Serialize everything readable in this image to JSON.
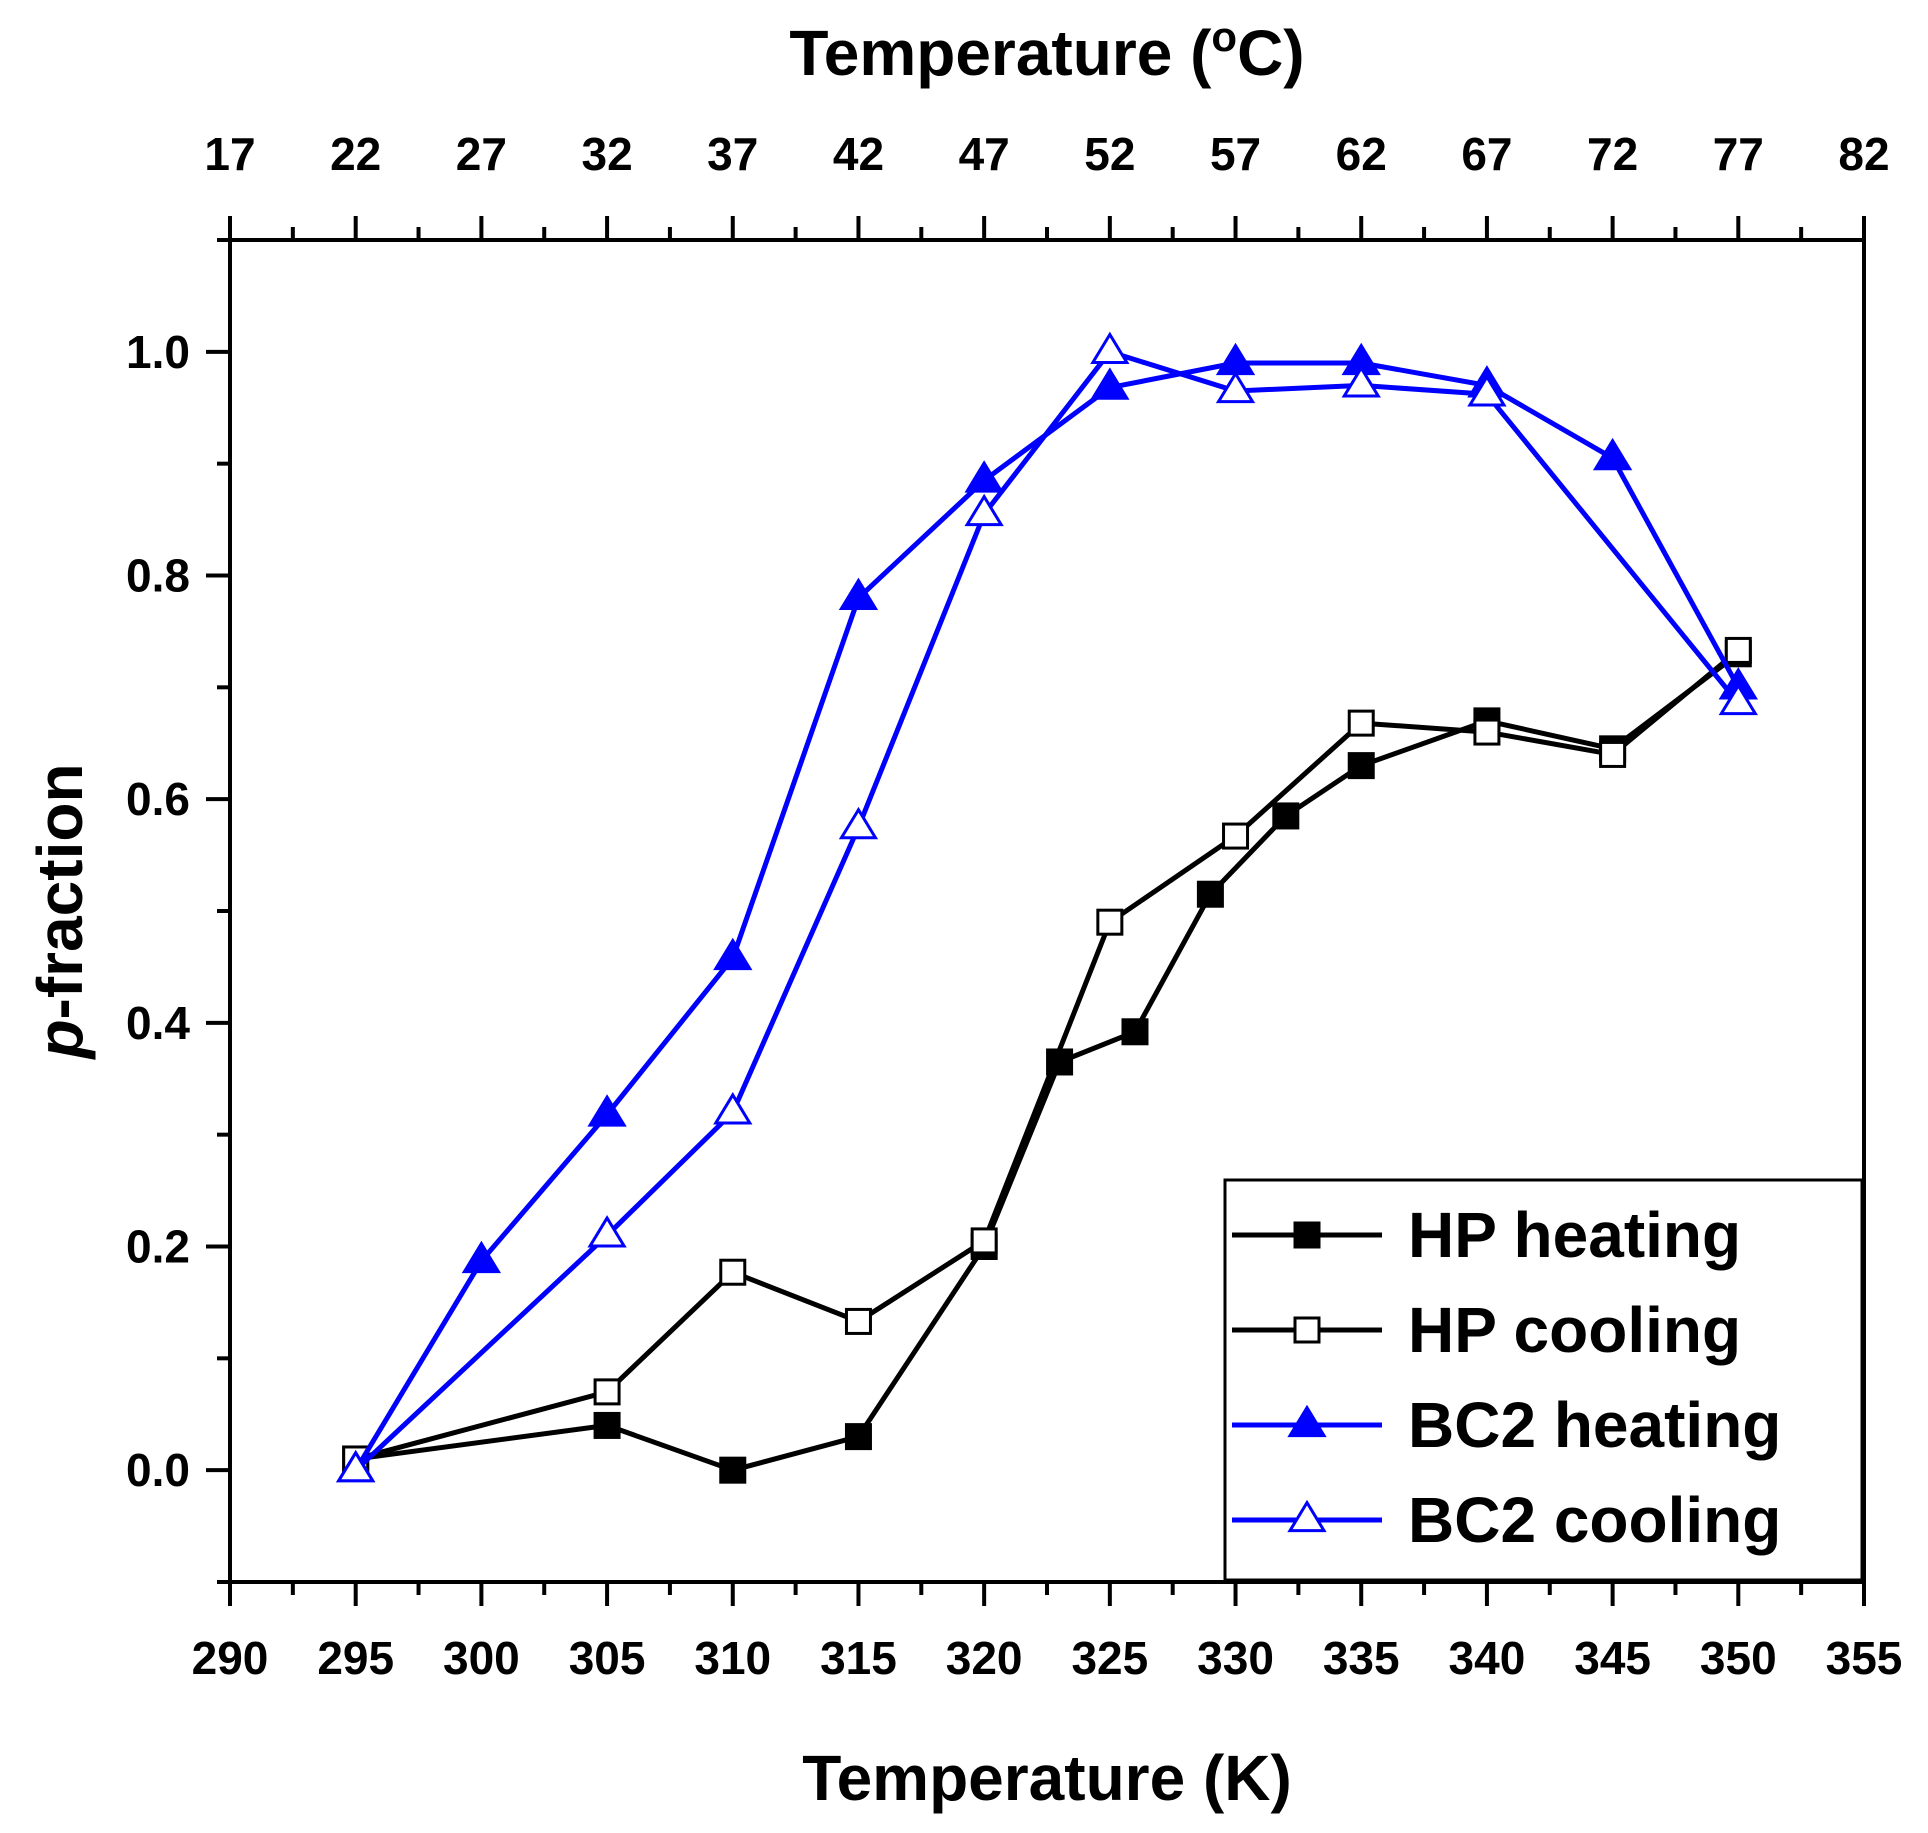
{
  "chart_data": {
    "type": "line",
    "xlabel": "Temperature (K)",
    "ylabel": "p-fraction",
    "top_xlabel": {
      "main": "Temperature (",
      "sup": "o",
      "tail": "C)"
    },
    "xlim": [
      290,
      355
    ],
    "ylim": [
      -0.1,
      1.1
    ],
    "x_ticks": [
      290,
      295,
      300,
      305,
      310,
      315,
      320,
      325,
      330,
      335,
      340,
      345,
      350,
      355
    ],
    "x_tick_labels": [
      "290",
      "295",
      "300",
      "305",
      "310",
      "315",
      "320",
      "325",
      "330",
      "335",
      "340",
      "345",
      "350",
      "355"
    ],
    "top_ticks_K": [
      290,
      295,
      300,
      305,
      310,
      315,
      320,
      325,
      330,
      335,
      340,
      345,
      350,
      355
    ],
    "top_tick_labels": [
      "17",
      "22",
      "27",
      "32",
      "37",
      "42",
      "47",
      "52",
      "57",
      "62",
      "67",
      "72",
      "77",
      "82"
    ],
    "y_ticks": [
      0.0,
      0.2,
      0.4,
      0.6,
      0.8,
      1.0
    ],
    "y_tick_labels": [
      "0.0",
      "0.2",
      "0.4",
      "0.6",
      "0.8",
      "1.0"
    ],
    "legend_position": "bottom-right",
    "series": [
      {
        "name": "HP heating",
        "color": "#000000",
        "marker": "square-filled",
        "x": [
          295,
          305,
          310,
          315,
          320,
          323,
          326,
          329,
          332,
          335,
          340,
          345,
          350
        ],
        "y": [
          0.01,
          0.04,
          0.0,
          0.03,
          0.2,
          0.365,
          0.392,
          0.515,
          0.585,
          0.63,
          0.67,
          0.645,
          0.73
        ]
      },
      {
        "name": "HP cooling",
        "color": "#000000",
        "marker": "square-open",
        "x": [
          295,
          305,
          310,
          315,
          320,
          325,
          330,
          335,
          340,
          345,
          350
        ],
        "y": [
          0.01,
          0.07,
          0.177,
          0.133,
          0.205,
          0.49,
          0.567,
          0.668,
          0.66,
          0.64,
          0.733
        ]
      },
      {
        "name": "BC2 heating",
        "color": "#0000ff",
        "marker": "triangle-filled",
        "x": [
          295,
          300,
          305,
          310,
          315,
          320,
          325,
          330,
          335,
          340,
          345,
          350
        ],
        "y": [
          0.0,
          0.187,
          0.318,
          0.458,
          0.78,
          0.885,
          0.968,
          0.99,
          0.99,
          0.97,
          0.905,
          0.7
        ]
      },
      {
        "name": "BC2 cooling",
        "color": "#0000ff",
        "marker": "triangle-open",
        "x": [
          295,
          305,
          310,
          315,
          320,
          325,
          330,
          335,
          340,
          350
        ],
        "y": [
          0.0,
          0.21,
          0.32,
          0.575,
          0.855,
          1.0,
          0.965,
          0.97,
          0.962,
          0.686
        ]
      }
    ]
  }
}
